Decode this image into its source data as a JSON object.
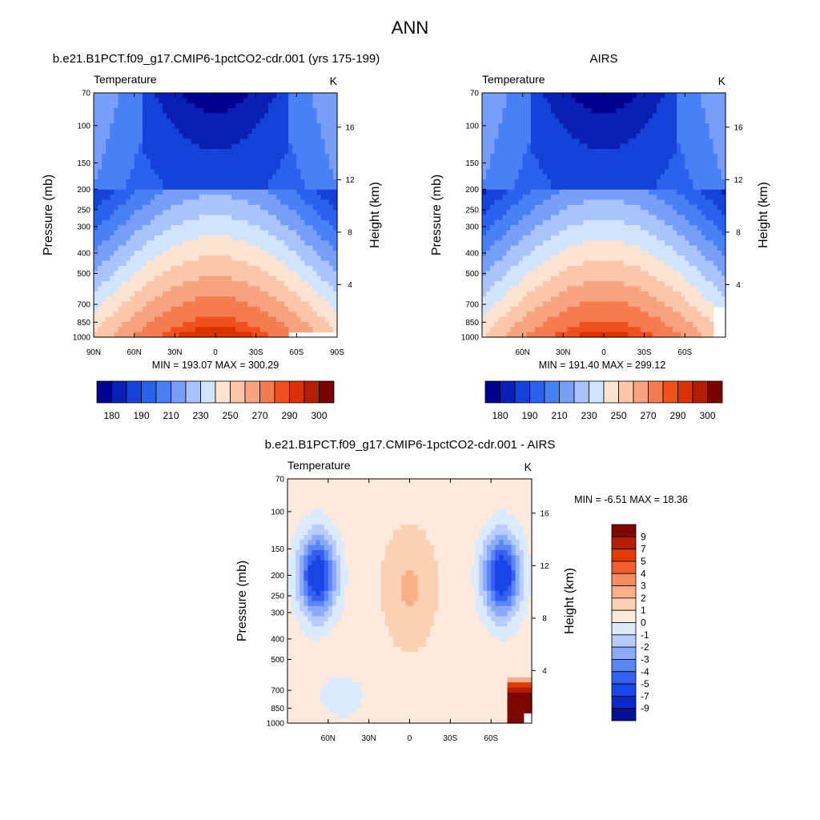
{
  "page": {
    "title": "ANN"
  },
  "palettes": {
    "abs": [
      "#000090",
      "#0a20b4",
      "#1542d8",
      "#2a62ee",
      "#4a80f6",
      "#789ff8",
      "#a8c4fa",
      "#d2e4fc",
      "#fde3d2",
      "#fcc6aa",
      "#f8a380",
      "#f57c50",
      "#f0501e",
      "#dc3200",
      "#b41e00",
      "#780000"
    ],
    "diff": [
      "#001090",
      "#0a28c8",
      "#1a46e6",
      "#3660f2",
      "#5b86f8",
      "#8aaafa",
      "#b8cdfc",
      "#dceafe",
      "#fdeadc",
      "#fcd0b2",
      "#f9b08a",
      "#f58c60",
      "#f2602e",
      "#e03c08",
      "#b41e00",
      "#7e0600"
    ]
  },
  "panels": [
    {
      "id": "model",
      "title": "b.e21.B1PCT.f09_g17.CMIP6-1pctCO2-cdr.001 (yrs 175-199)",
      "left_label": "Temperature",
      "right_label": "K",
      "ylabel": "Pressure (mb)",
      "ylabel_right": "Height (km)",
      "pressure_ticks": [
        "70",
        "100",
        "150",
        "200",
        "250",
        "300",
        "400",
        "500",
        "700",
        "850",
        "1000"
      ],
      "height_ticks": [
        "16",
        "12",
        "8",
        "4"
      ],
      "lat_ticks": [
        "90N",
        "60N",
        "30N",
        "0",
        "30S",
        "60S",
        "90S"
      ],
      "minmax": "MIN = 193.07   MAX = 300.29",
      "colorbar_labels": [
        "180",
        "190",
        "210",
        "230",
        "250",
        "270",
        "290",
        "300"
      ]
    },
    {
      "id": "obs",
      "title": "AIRS",
      "left_label": "Temperature",
      "right_label": "K",
      "ylabel": "Pressure (mb)",
      "ylabel_right": "Height (km)",
      "pressure_ticks": [
        "70",
        "100",
        "150",
        "200",
        "250",
        "300",
        "400",
        "500",
        "700",
        "850",
        "1000"
      ],
      "height_ticks": [
        "16",
        "12",
        "8",
        "4"
      ],
      "lat_ticks": [
        "60N",
        "30N",
        "0",
        "30S",
        "60S"
      ],
      "minmax": "MIN = 191.40   MAX = 299.12",
      "colorbar_labels": [
        "180",
        "190",
        "210",
        "230",
        "250",
        "270",
        "290",
        "300"
      ]
    },
    {
      "id": "diff",
      "title": "b.e21.B1PCT.f09_g17.CMIP6-1pctCO2-cdr.001 - AIRS",
      "left_label": "Temperature",
      "right_label": "K",
      "ylabel": "Pressure (mb)",
      "ylabel_right": "Height (km)",
      "pressure_ticks": [
        "70",
        "100",
        "150",
        "200",
        "250",
        "300",
        "400",
        "500",
        "700",
        "850",
        "1000"
      ],
      "height_ticks": [
        "16",
        "12",
        "8",
        "4"
      ],
      "lat_ticks": [
        "60N",
        "30N",
        "0",
        "30S",
        "60S"
      ],
      "minmax": "MIN =  -6.51   MAX =  18.36",
      "colorbar_labels": [
        "9",
        "7",
        "5",
        "4",
        "3",
        "2",
        "1",
        "0",
        "-1",
        "-2",
        "-3",
        "-4",
        "-5",
        "-7",
        "-9"
      ]
    }
  ],
  "chart_data": [
    {
      "type": "heatmap",
      "title": "b.e21.B1PCT.f09_g17.CMIP6-1pctCO2-cdr.001 (yrs 175-199)",
      "ylabel": "Pressure (mb)",
      "ylabel_right": "Height (km)",
      "x_range": [
        "90N",
        "90S"
      ],
      "y_range_mb": [
        1000,
        70
      ],
      "contour_levels": [
        180,
        185,
        190,
        200,
        210,
        220,
        230,
        240,
        250,
        260,
        270,
        280,
        290,
        295,
        300
      ],
      "min": 193.07,
      "max": 300.29,
      "units": "K"
    },
    {
      "type": "heatmap",
      "title": "AIRS",
      "ylabel": "Pressure (mb)",
      "ylabel_right": "Height (km)",
      "x_range": [
        "90N",
        "90S"
      ],
      "y_range_mb": [
        1000,
        70
      ],
      "contour_levels": [
        180,
        185,
        190,
        200,
        210,
        220,
        230,
        240,
        250,
        260,
        270,
        280,
        290,
        295,
        300
      ],
      "min": 191.4,
      "max": 299.12,
      "units": "K"
    },
    {
      "type": "heatmap",
      "title": "b.e21.B1PCT.f09_g17.CMIP6-1pctCO2-cdr.001 - AIRS",
      "ylabel": "Pressure (mb)",
      "ylabel_right": "Height (km)",
      "x_range": [
        "90N",
        "90S"
      ],
      "y_range_mb": [
        1000,
        70
      ],
      "contour_levels": [
        -9,
        -7,
        -5,
        -4,
        -3,
        -2,
        -1,
        0,
        1,
        2,
        3,
        4,
        5,
        7,
        9
      ],
      "min": -6.51,
      "max": 18.36,
      "units": "K"
    }
  ]
}
